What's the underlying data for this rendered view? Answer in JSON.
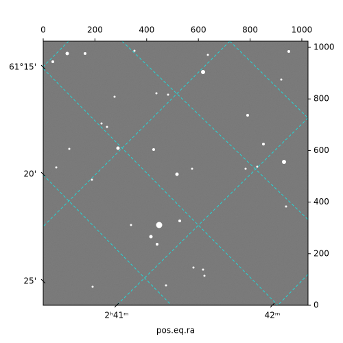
{
  "chart_data": {
    "type": "image",
    "xlabel": "pos.eq.ra",
    "xlim": [
      0,
      1024
    ],
    "ylim": [
      0,
      1024
    ],
    "xticks": [
      0,
      200,
      400,
      600,
      800,
      1000
    ],
    "yticks": [
      0,
      200,
      400,
      600,
      800,
      1000
    ],
    "world_yticks": [
      "61°15'",
      "20'",
      "25'"
    ],
    "world_xticks": [
      "2ʰ41ᵐ",
      "42ᵐ"
    ],
    "grid_color": "#22d8d8"
  }
}
